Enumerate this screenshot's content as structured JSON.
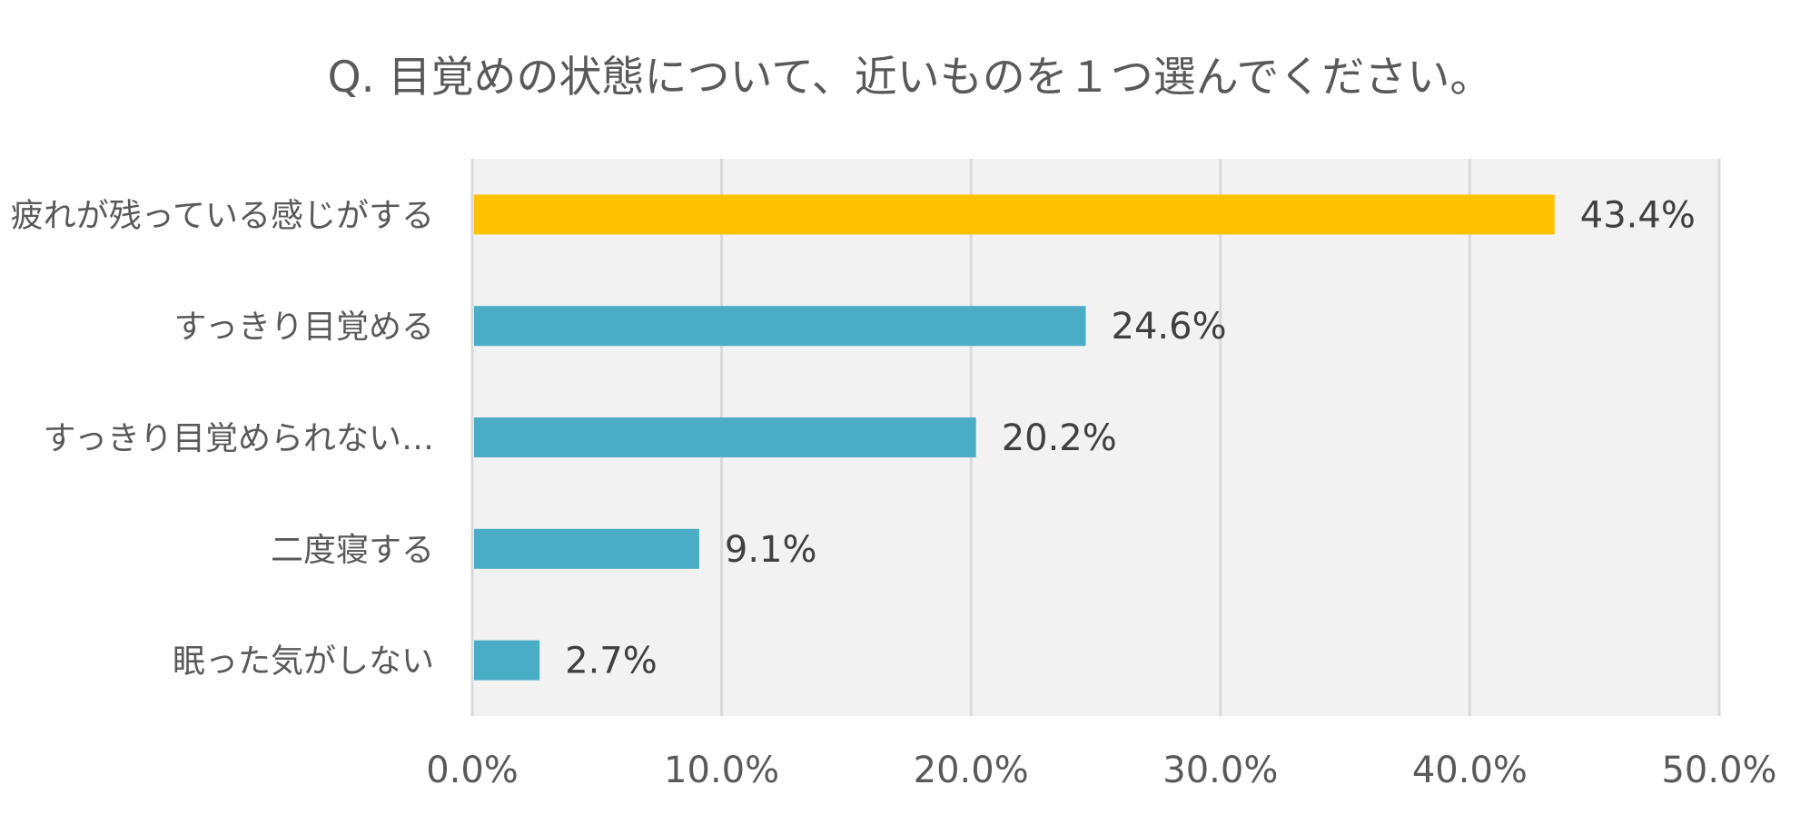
{
  "chart_data": {
    "type": "bar",
    "orientation": "horizontal",
    "title": "Q. 目覚めの状態について、近いものを１つ選んでください。",
    "categories": [
      "疲れが残っている感じがする",
      "すっきり目覚める",
      "すっきり目覚められない…",
      "二度寝する",
      "眠った気がしない"
    ],
    "values": [
      43.4,
      24.6,
      20.2,
      9.1,
      2.7
    ],
    "value_labels": [
      "43.4%",
      "24.6%",
      "20.2%",
      "9.1%",
      "2.7%"
    ],
    "bar_colors": [
      "#FFC000",
      "#4BACC6",
      "#4BACC6",
      "#4BACC6",
      "#4BACC6"
    ],
    "xlim": [
      0,
      50
    ],
    "x_ticks": [
      0,
      10,
      20,
      30,
      40,
      50
    ],
    "x_tick_labels": [
      "0.0%",
      "10.0%",
      "20.0%",
      "30.0%",
      "40.0%",
      "50.0%"
    ],
    "grid": true,
    "xlabel": "",
    "ylabel": ""
  }
}
